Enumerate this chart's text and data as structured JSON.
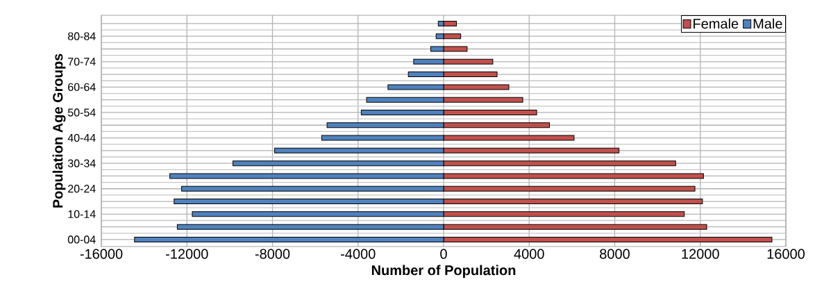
{
  "chart_data": {
    "type": "bar",
    "orientation": "horizontal",
    "xlabel": "Number of Population",
    "ylabel": "Population  Age Groups",
    "categories": [
      null,
      "80-84",
      null,
      "70-74",
      null,
      "60-64",
      null,
      "50-54",
      null,
      "40-44",
      null,
      "30-34",
      null,
      "20-24",
      null,
      "10-14",
      null,
      "00-04"
    ],
    "series": [
      {
        "name": "Female",
        "color": "#c0504d",
        "values": [
          600,
          800,
          1100,
          2300,
          2500,
          3050,
          3700,
          4350,
          4950,
          6100,
          8200,
          10850,
          12150,
          11750,
          12100,
          11250,
          12300,
          15350
        ]
      },
      {
        "name": "Male",
        "color": "#4f81bd",
        "values": [
          -250,
          -350,
          -600,
          -1400,
          -1650,
          -2600,
          -3600,
          -3850,
          -5450,
          -5700,
          -7900,
          -9850,
          -12800,
          -12250,
          -12600,
          -11750,
          -12450,
          -14450
        ]
      }
    ],
    "xlim": [
      -16000,
      16000
    ],
    "xticks": [
      -16000,
      -12000,
      -8000,
      -4000,
      0,
      4000,
      8000,
      12000,
      16000
    ],
    "stacked": true,
    "grid": true,
    "legend": "top right"
  }
}
